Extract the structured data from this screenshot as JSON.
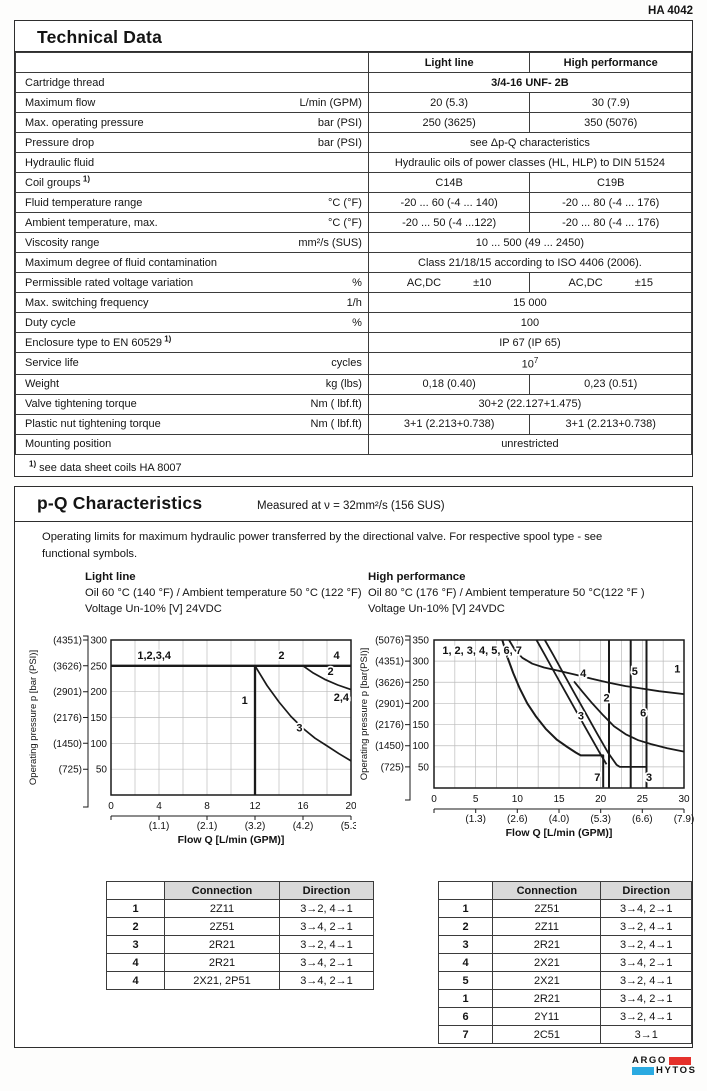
{
  "page": {
    "doc_number": "HA 4042"
  },
  "technical_data": {
    "title": "Technical Data",
    "columns": [
      "Light line",
      "High performance"
    ],
    "rows": [
      {
        "label": "Cartridge thread",
        "merged": "3/4-16 UNF- 2B",
        "bold": true
      },
      {
        "label": "Maximum flow",
        "unit": "L/min (GPM)",
        "values": [
          "20 (5.3)",
          "30 (7.9)"
        ]
      },
      {
        "label": "Max. operating pressure",
        "unit": "bar (PSI)",
        "values": [
          "250 (3625)",
          "350 (5076)"
        ]
      },
      {
        "label": "Pressure drop",
        "unit": "bar (PSI)",
        "merged": "see Δp-Q characteristics"
      },
      {
        "label": "Hydraulic fluid",
        "merged": "Hydraulic oils of power classes (HL, HLP) to DIN 51524"
      },
      {
        "label": "Coil groups",
        "marker": "1)",
        "values": [
          "C14B",
          "C19B"
        ]
      },
      {
        "label": "Fluid temperature range",
        "unit": "°C (°F)",
        "values": [
          "-20 ... 60 (-4 ... 140)",
          "-20 ... 80 (-4 ... 176)"
        ]
      },
      {
        "label": "Ambient temperature, max.",
        "unit": "°C (°F)",
        "values": [
          "-20 ... 50 (-4 ...122)",
          "-20 ... 80 (-4 ... 176)"
        ]
      },
      {
        "label": "Viscosity range",
        "unit": "mm²/s (SUS)",
        "merged": "10 ... 500 (49 ... 2450)"
      },
      {
        "label": "Maximum degree of fluid contamination",
        "merged": "Class 21/18/15 according to ISO 4406 (2006)."
      },
      {
        "label": "Permissible rated voltage variation",
        "unit": "%",
        "pairs": [
          [
            "AC,DC",
            "±10"
          ],
          [
            "AC,DC",
            "±15"
          ]
        ]
      },
      {
        "label": "Max. switching frequency",
        "unit": "1/h",
        "merged": "15 000"
      },
      {
        "label": "Duty cycle",
        "unit": "%",
        "merged": "100"
      },
      {
        "label": "Enclosure type to EN 60529",
        "marker": "1)",
        "merged": "IP 67 (IP 65)"
      },
      {
        "label": "Service life",
        "unit": "cycles",
        "merged": "10",
        "merged_sup": "7"
      },
      {
        "label": "Weight",
        "unit": "kg (lbs)",
        "values": [
          "0,18 (0.40)",
          "0,23 (0.51)"
        ]
      },
      {
        "label": "Valve tightening torque",
        "unit": "Nm ( lbf.ft)",
        "merged": "30+2 (22.127+1.475)"
      },
      {
        "label": "Plastic nut tightening torque",
        "unit": "Nm ( lbf.ft)",
        "values": [
          "3+1 (2.213+0.738)",
          "3+1 (2.213+0.738)"
        ]
      },
      {
        "label": "Mounting position",
        "merged": "unrestricted"
      }
    ],
    "footnote_marker": "1)",
    "footnote": " see data sheet coils HA 8007"
  },
  "pq": {
    "title": "p-Q Characteristics",
    "subtitle": "Measured at  ν =  32mm²/s (156 SUS)",
    "intro": "Operating limits for maximum hydraulic power transferred by the directional valve. For respective spool type - see\nfunctional symbols.",
    "left_block": {
      "title": "Light line",
      "line1": "Oil 60 °C (140 °F) / Ambient temperature 50 °C (122 °F)",
      "line2": "Voltage Un-10% [V] 24VDC"
    },
    "right_block": {
      "title": "High performance",
      "line1": "Oil 80 °C (176 °F) /  Ambient temperature 50 °C(122 °F )",
      "line2": "Voltage Un-10% [V] 24VDC"
    }
  },
  "chart_data": [
    {
      "type": "line",
      "title": "Light line",
      "xlabel": "Flow Q [L/min (GPM)]",
      "ylabel": "Operating pressure p [bar (PSI)]",
      "xlim": [
        0,
        20
      ],
      "ylim": [
        0,
        300
      ],
      "grid": true,
      "x_minor_step": 2,
      "y_step": 50,
      "x_major": [
        0,
        4,
        8,
        12,
        16,
        20
      ],
      "y_major": [
        50,
        100,
        150,
        200,
        250,
        300
      ],
      "gpm_ticks": [
        {
          "x": 4,
          "label": "(1.1)"
        },
        {
          "x": 8,
          "label": "(2.1)"
        },
        {
          "x": 12,
          "label": "(3.2)"
        },
        {
          "x": 16,
          "label": "(4.2)"
        },
        {
          "x": 20,
          "label": "(5.3)"
        }
      ],
      "psi_ticks": [
        {
          "y": 50,
          "label": "(725)"
        },
        {
          "y": 100,
          "label": "(1450)"
        },
        {
          "y": 150,
          "label": "(2176)"
        },
        {
          "y": 200,
          "label": "(2901)"
        },
        {
          "y": 250,
          "label": "(3626)"
        },
        {
          "y": 300,
          "label": "(4351)"
        }
      ],
      "series": [
        {
          "name": "limit-250-bar",
          "points": [
            [
              0,
              250
            ],
            [
              20,
              250
            ]
          ]
        },
        {
          "name": "curve-1",
          "points": [
            [
              12,
              0
            ],
            [
              12,
              250
            ]
          ]
        },
        {
          "name": "curve-3",
          "points": [
            [
              12,
              250
            ],
            [
              13,
              212
            ],
            [
              14,
              180
            ],
            [
              15,
              152
            ],
            [
              16,
              129
            ],
            [
              17,
              110
            ],
            [
              18,
              95
            ],
            [
              19,
              80
            ],
            [
              20,
              66
            ]
          ]
        },
        {
          "name": "curve-2",
          "points": [
            [
              16,
              250
            ],
            [
              16.8,
              237
            ],
            [
              17.8,
              224
            ],
            [
              18.9,
              213
            ],
            [
              20,
              204
            ]
          ]
        }
      ],
      "annotations": [
        {
          "text": "1,2,3,4",
          "x": 3.6,
          "y": 271
        },
        {
          "text": "2",
          "x": 14.2,
          "y": 271
        },
        {
          "text": "4",
          "x": 18.8,
          "y": 271
        },
        {
          "text": "1",
          "x": 11.4,
          "y": 184,
          "anchor": "end"
        },
        {
          "text": "3",
          "x": 15.7,
          "y": 131
        },
        {
          "text": "2",
          "x": 18.3,
          "y": 240
        },
        {
          "text": "2,4",
          "x": 19.2,
          "y": 190
        }
      ]
    },
    {
      "type": "line",
      "title": "High performance",
      "xlabel": "Flow Q [L/min (GPM)]",
      "ylabel": "Operating pressure p [bar(PSI)]",
      "xlim": [
        0,
        30
      ],
      "ylim": [
        0,
        350
      ],
      "grid": true,
      "x_minor_step": 2.5,
      "y_step": 50,
      "x_major": [
        0,
        5,
        10,
        15,
        20,
        25,
        30
      ],
      "y_major": [
        50,
        100,
        150,
        200,
        250,
        300,
        350
      ],
      "gpm_ticks": [
        {
          "x": 5,
          "label": "(1.3)"
        },
        {
          "x": 10,
          "label": "(2.6)"
        },
        {
          "x": 15,
          "label": "(4.0)"
        },
        {
          "x": 20,
          "label": "(5.3)"
        },
        {
          "x": 25,
          "label": "(6.6)"
        },
        {
          "x": 30,
          "label": "(7.9)"
        }
      ],
      "psi_ticks": [
        {
          "y": 50,
          "label": "(725)"
        },
        {
          "y": 100,
          "label": "(1450)"
        },
        {
          "y": 150,
          "label": "(2176)"
        },
        {
          "y": 200,
          "label": "(2901)"
        },
        {
          "y": 250,
          "label": "(3626)"
        },
        {
          "y": 300,
          "label": "(4351)"
        },
        {
          "y": 350,
          "label": "(5076)"
        }
      ],
      "series": [
        {
          "name": "curve-7",
          "points": [
            [
              8.2,
              350
            ],
            [
              8.8,
              310
            ],
            [
              9.5,
              272
            ],
            [
              10.3,
              235
            ],
            [
              11.2,
              200
            ],
            [
              12.2,
              170
            ],
            [
              13.4,
              140
            ],
            [
              14.7,
              115
            ],
            [
              16,
              97
            ],
            [
              17,
              84
            ],
            [
              17.6,
              77
            ],
            [
              20.3,
              77
            ],
            [
              20.3,
              2
            ]
          ]
        },
        {
          "name": "curve-2-vert",
          "points": [
            [
              21,
              0
            ],
            [
              21,
              350
            ]
          ]
        },
        {
          "name": "curve-5-vert",
          "points": [
            [
              23.6,
              0
            ],
            [
              23.6,
              350
            ]
          ]
        },
        {
          "name": "curve-6-vert",
          "points": [
            [
              25.5,
              0
            ],
            [
              25.5,
              350
            ]
          ]
        },
        {
          "name": "curve-a",
          "points": [
            [
              12.3,
              350
            ],
            [
              13.3,
              315
            ],
            [
              14.5,
              272
            ],
            [
              15.8,
              226
            ],
            [
              17.2,
              177
            ],
            [
              18.6,
              128
            ],
            [
              19.8,
              86
            ],
            [
              20.7,
              56
            ]
          ]
        },
        {
          "name": "curve-3",
          "points": [
            [
              13.3,
              350
            ],
            [
              14.3,
              315
            ],
            [
              15.5,
              272
            ],
            [
              16.8,
              226
            ],
            [
              18.2,
              177
            ],
            [
              19.6,
              128
            ],
            [
              20.9,
              83
            ],
            [
              21.9,
              55
            ],
            [
              22.3,
              50
            ],
            [
              25.5,
              50
            ],
            [
              25.5,
              2
            ]
          ]
        },
        {
          "name": "curve-4",
          "points": [
            [
              9,
              350
            ],
            [
              9.7,
              327
            ],
            [
              10.6,
              308
            ],
            [
              11.8,
              294
            ],
            [
              13.2,
              285
            ],
            [
              15,
              277
            ],
            [
              17,
              268
            ],
            [
              19,
              258
            ],
            [
              21,
              249
            ],
            [
              23,
              241
            ],
            [
              25,
              235
            ],
            [
              27,
              229
            ],
            [
              30,
              222
            ]
          ]
        },
        {
          "name": "curve-6",
          "points": [
            [
              16.8,
              252
            ],
            [
              17.8,
              228
            ],
            [
              19,
              200
            ],
            [
              20.3,
              172
            ],
            [
              21.6,
              146
            ],
            [
              23,
              127
            ],
            [
              24.5,
              113
            ],
            [
              26,
              104
            ],
            [
              28,
              94
            ],
            [
              30,
              86
            ]
          ]
        }
      ],
      "annotations": [
        {
          "text": "1, 2, 3, 4, 5, 6, 7",
          "x": 1.0,
          "y": 326,
          "anchor": "start"
        },
        {
          "text": "4",
          "x": 17.9,
          "y": 272
        },
        {
          "text": "5",
          "x": 24.1,
          "y": 277
        },
        {
          "text": "1",
          "x": 29.2,
          "y": 283
        },
        {
          "text": "2",
          "x": 20.7,
          "y": 214
        },
        {
          "text": "3",
          "x": 18.0,
          "y": 172,
          "anchor": "end"
        },
        {
          "text": "6",
          "x": 25.1,
          "y": 179
        },
        {
          "text": "7",
          "x": 19.6,
          "y": 26
        },
        {
          "text": "3",
          "x": 25.8,
          "y": 26
        }
      ]
    }
  ],
  "connection_tables": {
    "left": {
      "headers": [
        "",
        "Connection",
        "Direction"
      ],
      "rows": [
        [
          "1",
          "2Z11",
          "3→2, 4→1"
        ],
        [
          "2",
          "2Z51",
          "3→4, 2→1"
        ],
        [
          "3",
          "2R21",
          "3→2, 4→1"
        ],
        [
          "4",
          "2R21",
          "3→4, 2→1"
        ],
        [
          "4",
          "2X21, 2P51",
          "3→4, 2→1"
        ]
      ]
    },
    "right": {
      "headers": [
        "",
        "Connection",
        "Direction"
      ],
      "rows": [
        [
          "1",
          "2Z51",
          "3→4, 2→1"
        ],
        [
          "2",
          "2Z11",
          "3→2, 4→1"
        ],
        [
          "3",
          "2R21",
          "3→2, 4→1"
        ],
        [
          "4",
          "2X21",
          "3→4, 2→1"
        ],
        [
          "5",
          "2X21",
          "3→2, 4→1"
        ],
        [
          "1",
          "2R21",
          "3→4, 2→1"
        ],
        [
          "6",
          "2Y11",
          "3→2, 4→1"
        ],
        [
          "7",
          "2C51",
          "3→1"
        ]
      ]
    }
  },
  "logo": {
    "line1": "ARGO",
    "line2": "HYTOS",
    "red": "#e5312b",
    "blue": "#2aaae1"
  }
}
